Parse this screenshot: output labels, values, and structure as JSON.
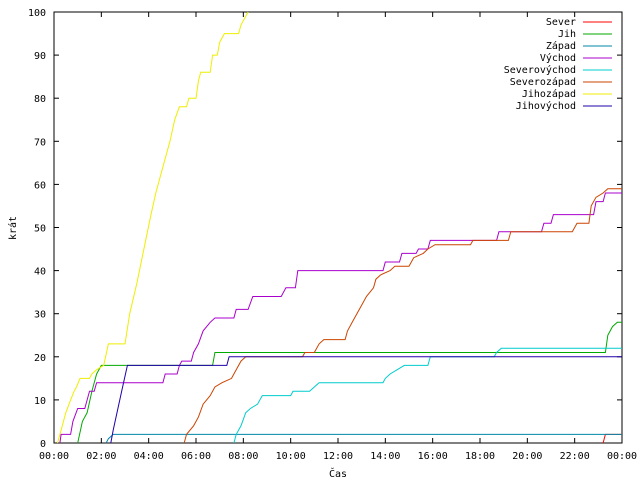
{
  "chart_data": {
    "type": "line",
    "xlabel": "Čas",
    "ylabel": "krát",
    "xlim": [
      0,
      24
    ],
    "ylim": [
      0,
      100
    ],
    "x_ticks": [
      {
        "value": 0,
        "label": "00:00"
      },
      {
        "value": 2,
        "label": "02:00"
      },
      {
        "value": 4,
        "label": "04:00"
      },
      {
        "value": 6,
        "label": "06:00"
      },
      {
        "value": 8,
        "label": "08:00"
      },
      {
        "value": 10,
        "label": "10:00"
      },
      {
        "value": 12,
        "label": "12:00"
      },
      {
        "value": 14,
        "label": "14:00"
      },
      {
        "value": 16,
        "label": "16:00"
      },
      {
        "value": 18,
        "label": "18:00"
      },
      {
        "value": 20,
        "label": "20:00"
      },
      {
        "value": 22,
        "label": "22:00"
      },
      {
        "value": 24,
        "label": "00:00"
      }
    ],
    "y_ticks": [
      0,
      10,
      20,
      30,
      40,
      50,
      60,
      70,
      80,
      90,
      100
    ],
    "grid": false,
    "legend_position": "top-right",
    "series": [
      {
        "name": "Sever",
        "color": "#ff0000",
        "points": [
          [
            23.2,
            0
          ],
          [
            23.3,
            2
          ],
          [
            24,
            2
          ]
        ]
      },
      {
        "name": "Jih",
        "color": "#00aa00",
        "points": [
          [
            1.0,
            0
          ],
          [
            1.2,
            5
          ],
          [
            1.4,
            7
          ],
          [
            1.6,
            12
          ],
          [
            1.8,
            16
          ],
          [
            2.0,
            18
          ],
          [
            6.7,
            18
          ],
          [
            6.8,
            21
          ],
          [
            23.3,
            21
          ],
          [
            23.4,
            25
          ],
          [
            23.6,
            27
          ],
          [
            23.8,
            28
          ],
          [
            24,
            28
          ]
        ]
      },
      {
        "name": "Západ",
        "color": "#0088aa",
        "points": [
          [
            2.2,
            0
          ],
          [
            2.3,
            1
          ],
          [
            2.5,
            2
          ],
          [
            2.7,
            2
          ],
          [
            24,
            2
          ]
        ]
      },
      {
        "name": "Východ",
        "color": "#aa00cc",
        "points": [
          [
            0.25,
            0
          ],
          [
            0.3,
            2
          ],
          [
            0.7,
            2
          ],
          [
            0.8,
            5
          ],
          [
            1.0,
            8
          ],
          [
            1.3,
            8
          ],
          [
            1.5,
            12
          ],
          [
            1.7,
            12
          ],
          [
            1.8,
            14
          ],
          [
            4.6,
            14
          ],
          [
            4.7,
            16
          ],
          [
            5.2,
            16
          ],
          [
            5.3,
            18
          ],
          [
            5.4,
            19
          ],
          [
            5.8,
            19
          ],
          [
            5.9,
            21
          ],
          [
            6.1,
            23
          ],
          [
            6.3,
            26
          ],
          [
            6.6,
            28
          ],
          [
            6.8,
            29
          ],
          [
            7.6,
            29
          ],
          [
            7.7,
            31
          ],
          [
            8.2,
            31
          ],
          [
            8.4,
            34
          ],
          [
            9.6,
            34
          ],
          [
            9.8,
            36
          ],
          [
            10.2,
            36
          ],
          [
            10.3,
            40
          ],
          [
            13.9,
            40
          ],
          [
            14.0,
            42
          ],
          [
            14.6,
            42
          ],
          [
            14.7,
            44
          ],
          [
            15.3,
            44
          ],
          [
            15.4,
            45
          ],
          [
            15.8,
            45
          ],
          [
            15.9,
            47
          ],
          [
            18.7,
            47
          ],
          [
            18.8,
            49
          ],
          [
            20.6,
            49
          ],
          [
            20.7,
            51
          ],
          [
            21.0,
            51
          ],
          [
            21.1,
            53
          ],
          [
            22.8,
            53
          ],
          [
            22.9,
            56
          ],
          [
            23.2,
            56
          ],
          [
            23.3,
            58
          ],
          [
            24,
            58
          ]
        ]
      },
      {
        "name": "Severovýchod",
        "color": "#00cccc",
        "points": [
          [
            7.6,
            0
          ],
          [
            7.7,
            2
          ],
          [
            7.9,
            4
          ],
          [
            8.1,
            7
          ],
          [
            8.3,
            8
          ],
          [
            8.6,
            9
          ],
          [
            8.8,
            11
          ],
          [
            10.0,
            11
          ],
          [
            10.1,
            12
          ],
          [
            10.8,
            12
          ],
          [
            11.0,
            13
          ],
          [
            11.2,
            14
          ],
          [
            13.9,
            14
          ],
          [
            14.0,
            15
          ],
          [
            14.2,
            16
          ],
          [
            14.5,
            17
          ],
          [
            14.8,
            18
          ],
          [
            15.8,
            18
          ],
          [
            15.9,
            20
          ],
          [
            18.6,
            20
          ],
          [
            18.7,
            21
          ],
          [
            18.9,
            22
          ],
          [
            24,
            22
          ]
        ]
      },
      {
        "name": "Severozápad",
        "color": "#cc4400",
        "points": [
          [
            5.5,
            0
          ],
          [
            5.6,
            2
          ],
          [
            5.9,
            4
          ],
          [
            6.1,
            6
          ],
          [
            6.3,
            9
          ],
          [
            6.6,
            11
          ],
          [
            6.8,
            13
          ],
          [
            7.1,
            14
          ],
          [
            7.5,
            15
          ],
          [
            7.7,
            17
          ],
          [
            7.9,
            19
          ],
          [
            8.1,
            20
          ],
          [
            10.5,
            20
          ],
          [
            10.6,
            21
          ],
          [
            11.0,
            21
          ],
          [
            11.2,
            23
          ],
          [
            11.4,
            24
          ],
          [
            12.3,
            24
          ],
          [
            12.4,
            26
          ],
          [
            12.6,
            28
          ],
          [
            12.8,
            30
          ],
          [
            13.0,
            32
          ],
          [
            13.2,
            34
          ],
          [
            13.5,
            36
          ],
          [
            13.6,
            38
          ],
          [
            13.8,
            39
          ],
          [
            14.2,
            40
          ],
          [
            14.4,
            41
          ],
          [
            15.0,
            41
          ],
          [
            15.2,
            43
          ],
          [
            15.6,
            44
          ],
          [
            15.8,
            45
          ],
          [
            16.1,
            46
          ],
          [
            17.6,
            46
          ],
          [
            17.7,
            47
          ],
          [
            19.2,
            47
          ],
          [
            19.3,
            49
          ],
          [
            21.9,
            49
          ],
          [
            22.1,
            51
          ],
          [
            22.6,
            51
          ],
          [
            22.7,
            55
          ],
          [
            22.9,
            57
          ],
          [
            23.2,
            58
          ],
          [
            23.4,
            59
          ],
          [
            24,
            59
          ]
        ]
      },
      {
        "name": "Jihozápad",
        "color": "#eeee00",
        "points": [
          [
            0.15,
            0
          ],
          [
            0.3,
            3
          ],
          [
            0.5,
            7
          ],
          [
            0.7,
            10
          ],
          [
            0.85,
            12
          ],
          [
            0.95,
            13
          ],
          [
            1.1,
            15
          ],
          [
            1.5,
            15
          ],
          [
            1.6,
            16
          ],
          [
            1.8,
            17
          ],
          [
            2.1,
            18
          ],
          [
            2.3,
            23
          ],
          [
            3.0,
            23
          ],
          [
            3.2,
            30
          ],
          [
            3.5,
            37
          ],
          [
            3.8,
            45
          ],
          [
            4.1,
            53
          ],
          [
            4.3,
            58
          ],
          [
            4.5,
            62
          ],
          [
            4.7,
            66
          ],
          [
            4.9,
            70
          ],
          [
            5.1,
            75
          ],
          [
            5.3,
            78
          ],
          [
            5.6,
            78
          ],
          [
            5.7,
            80
          ],
          [
            6.0,
            80
          ],
          [
            6.1,
            84
          ],
          [
            6.2,
            86
          ],
          [
            6.6,
            86
          ],
          [
            6.7,
            90
          ],
          [
            6.9,
            90
          ],
          [
            7.0,
            93
          ],
          [
            7.2,
            95
          ],
          [
            7.8,
            95
          ],
          [
            7.9,
            97
          ],
          [
            8.1,
            99
          ],
          [
            8.2,
            100
          ]
        ]
      },
      {
        "name": "Jihovýchod",
        "color": "#2200aa",
        "points": [
          [
            2.4,
            0
          ],
          [
            2.5,
            3
          ],
          [
            2.7,
            8
          ],
          [
            2.9,
            13
          ],
          [
            3.1,
            18
          ],
          [
            5.2,
            18
          ],
          [
            7.3,
            18
          ],
          [
            7.4,
            20
          ],
          [
            24,
            20
          ]
        ]
      }
    ]
  }
}
